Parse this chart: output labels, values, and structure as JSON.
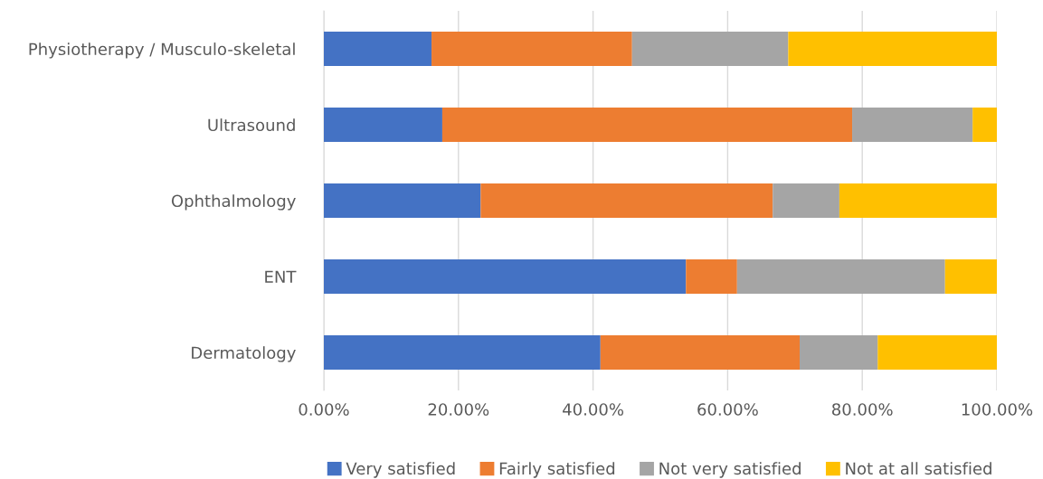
{
  "chart_data": {
    "type": "bar",
    "orientation": "horizontal",
    "stacked": true,
    "categories": [
      "Physiotherapy / Musculo-skeletal",
      "Ultrasound",
      "Ophthalmology",
      "ENT",
      "Dermatology"
    ],
    "series": [
      {
        "name": "Very satisfied",
        "color": "#4472c4",
        "values": [
          16.0,
          17.6,
          23.3,
          53.8,
          41.1
        ]
      },
      {
        "name": "Fairly satisfied",
        "color": "#ed7d31",
        "values": [
          29.8,
          60.9,
          43.4,
          7.6,
          29.6
        ]
      },
      {
        "name": "Not very satisfied",
        "color": "#a5a5a5",
        "values": [
          23.2,
          17.9,
          9.9,
          30.9,
          11.6
        ]
      },
      {
        "name": "Not at all satisfied",
        "color": "#ffc000",
        "values": [
          31.0,
          3.6,
          23.4,
          7.7,
          17.7
        ]
      }
    ],
    "xlim": [
      0,
      100
    ],
    "xticks": [
      {
        "value": 0,
        "label": "0.00%"
      },
      {
        "value": 20,
        "label": "20.00%"
      },
      {
        "value": 40,
        "label": "40.00%"
      },
      {
        "value": 60,
        "label": "60.00%"
      },
      {
        "value": 80,
        "label": "80.00%"
      },
      {
        "value": 100,
        "label": "100.00%"
      }
    ],
    "grid": "x",
    "legend": "bottom"
  }
}
